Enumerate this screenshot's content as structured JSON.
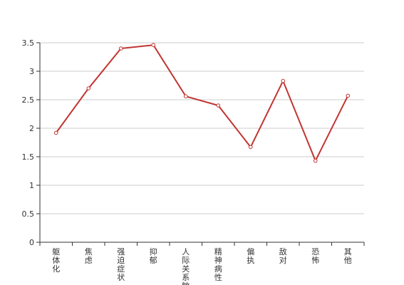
{
  "chart_data": {
    "type": "line",
    "title": "",
    "xlabel": "",
    "ylabel": "",
    "categories": [
      "躯体化",
      "焦虑",
      "强迫症状",
      "抑郁",
      "人际关系敏感",
      "精神病性",
      "偏执",
      "敌对",
      "恐怖",
      "其他"
    ],
    "series": [
      {
        "values": [
          1.92,
          2.7,
          3.4,
          3.46,
          2.56,
          2.4,
          1.67,
          2.83,
          1.43,
          2.57
        ]
      }
    ],
    "ylim": [
      0,
      3.5
    ],
    "yticks": [
      0,
      0.5,
      1,
      1.5,
      2,
      2.5,
      3,
      3.5
    ],
    "ytick_labels": [
      "0",
      "0.5",
      "1",
      "1.5",
      "2",
      "2.5",
      "3",
      "3.5"
    ],
    "grid": true,
    "legend": "none",
    "colors": {
      "line": "#c23531",
      "grid": "#cccccc",
      "axis": "#333333"
    }
  }
}
